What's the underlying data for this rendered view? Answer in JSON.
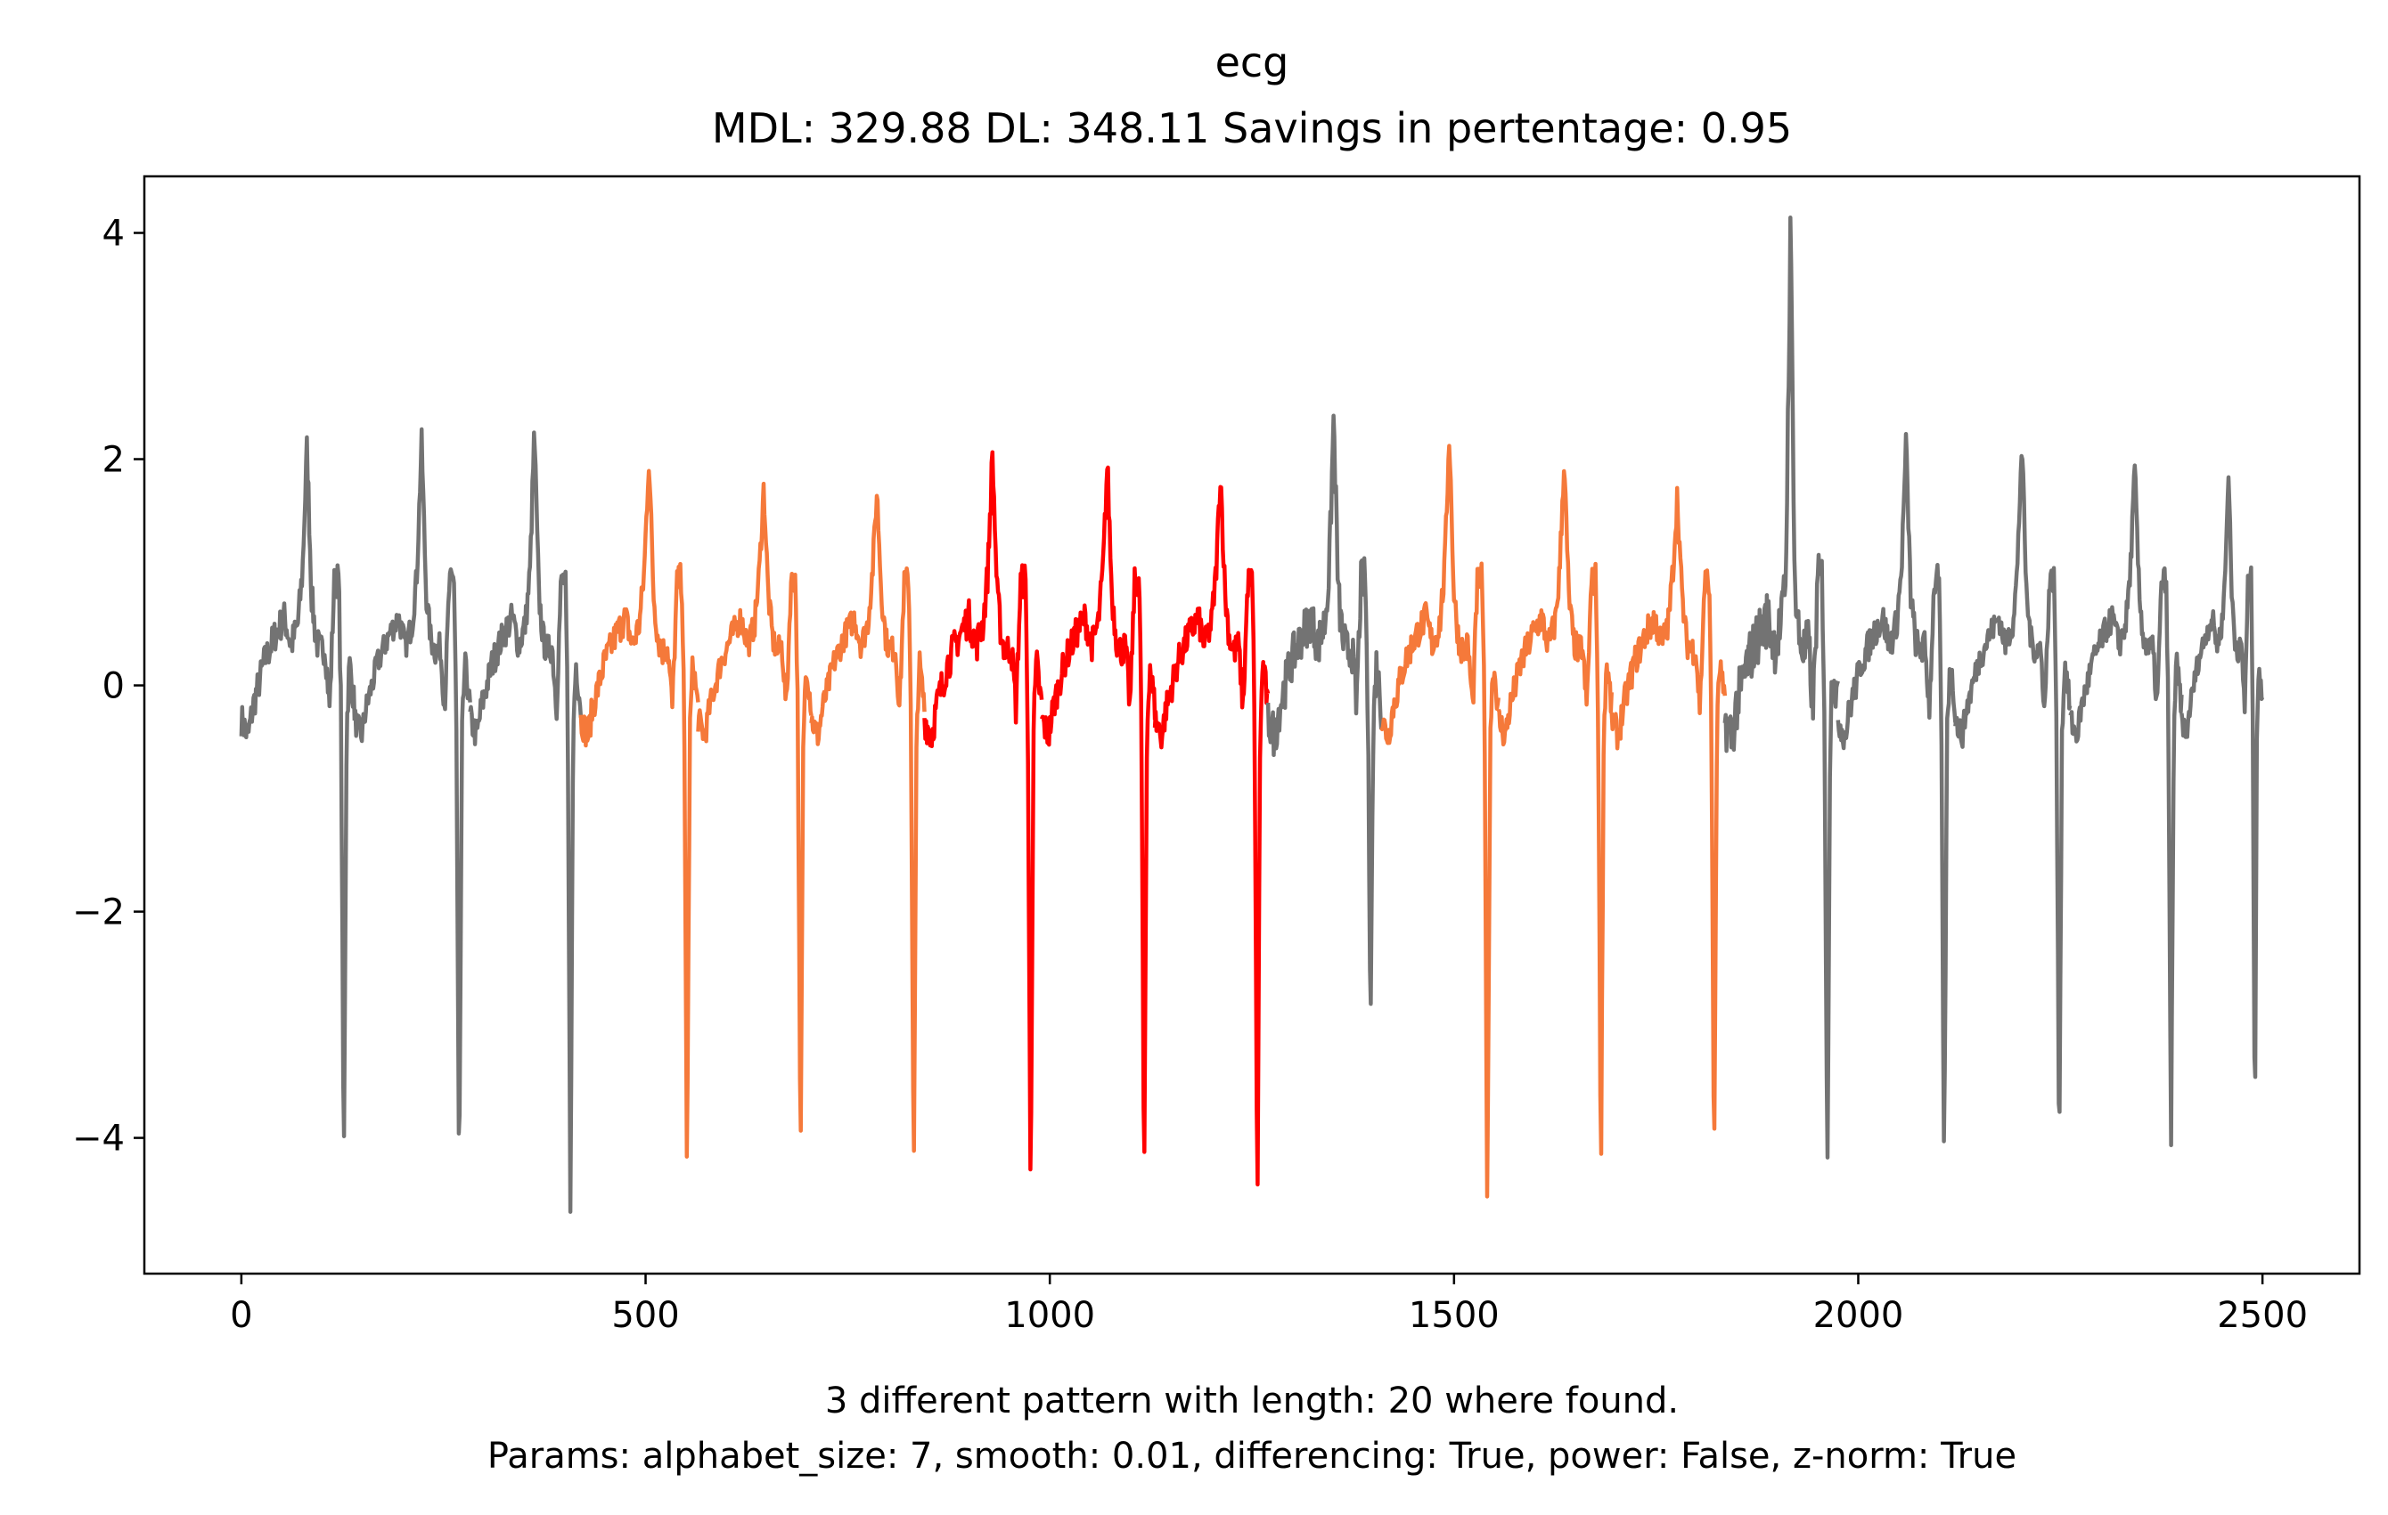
{
  "chart_data": {
    "type": "line",
    "title": "ecg",
    "subtitle": "MDL: 329.88 DL: 348.11 Savings in pertentage: 0.95",
    "xlabel_line1": "3 different pattern with length: 20 where found.",
    "xlabel_line2": "Params: alphabet_size: 7, smooth: 0.01, differencing: True, power: False, z-norm: True",
    "ylabel": "",
    "xlim": [
      -120,
      2620
    ],
    "ylim": [
      -5.2,
      4.5
    ],
    "xticks": [
      0,
      500,
      1000,
      1500,
      2000,
      2500
    ],
    "xtick_labels": [
      "0",
      "500",
      "1000",
      "1500",
      "2000",
      "2500"
    ],
    "yticks": [
      4,
      2,
      0,
      -2,
      -4
    ],
    "ytick_labels": [
      "4",
      "2",
      "0",
      "−2",
      "−4"
    ],
    "grid": false,
    "legend": "none",
    "colors": {
      "base": "#737373",
      "pattern_orange": "#f5793a",
      "pattern_red": "#ff0000"
    },
    "beats": [
      {
        "start": 0,
        "end": 140,
        "color": "base",
        "r_peak": 2.12,
        "s_min": -4.38,
        "jitter": 0.15
      },
      {
        "start": 140,
        "end": 283,
        "color": "base",
        "r_peak": 2.16,
        "s_min": -4.5,
        "jitter": 0.12
      },
      {
        "start": 283,
        "end": 420,
        "color": "base",
        "r_peak": 2.25,
        "s_min": -4.58,
        "jitter": 0.14
      },
      {
        "start": 420,
        "end": 565,
        "color": "pattern_orange",
        "r_peak": 2.02,
        "s_min": -4.35,
        "jitter": 0.14
      },
      {
        "start": 565,
        "end": 705,
        "color": "pattern_orange",
        "r_peak": 1.75,
        "s_min": -4.37,
        "jitter": 0.12
      },
      {
        "start": 705,
        "end": 845,
        "color": "pattern_orange",
        "r_peak": 1.72,
        "s_min": -4.5,
        "jitter": 0.12
      },
      {
        "start": 845,
        "end": 990,
        "color": "pattern_red",
        "r_peak": 2.04,
        "s_min": -4.6,
        "jitter": 0.16
      },
      {
        "start": 990,
        "end": 1130,
        "color": "pattern_red",
        "r_peak": 1.97,
        "s_min": -4.62,
        "jitter": 0.14
      },
      {
        "start": 1130,
        "end": 1270,
        "color": "pattern_red",
        "r_peak": 1.89,
        "s_min": -4.72,
        "jitter": 0.14
      },
      {
        "start": 1270,
        "end": 1410,
        "color": "base",
        "r_peak": 2.38,
        "s_min": -2.85,
        "jitter": 0.2
      },
      {
        "start": 1410,
        "end": 1555,
        "color": "pattern_orange",
        "r_peak": 2.24,
        "s_min": -4.72,
        "jitter": 0.14
      },
      {
        "start": 1555,
        "end": 1695,
        "color": "pattern_orange",
        "r_peak": 2.01,
        "s_min": -4.35,
        "jitter": 0.14
      },
      {
        "start": 1695,
        "end": 1835,
        "color": "pattern_orange",
        "r_peak": 1.68,
        "s_min": -4.38,
        "jitter": 0.14
      },
      {
        "start": 1835,
        "end": 1975,
        "color": "base",
        "r_peak": 4.05,
        "s_min": -4.52,
        "jitter": 0.25
      },
      {
        "start": 1975,
        "end": 2120,
        "color": "base",
        "r_peak": 2.14,
        "s_min": -4.38,
        "jitter": 0.14
      },
      {
        "start": 2120,
        "end": 2262,
        "color": "base",
        "r_peak": 2.16,
        "s_min": -4.2,
        "jitter": 0.12
      },
      {
        "start": 2262,
        "end": 2400,
        "color": "base",
        "r_peak": 1.92,
        "s_min": -4.15,
        "jitter": 0.12
      },
      {
        "start": 2400,
        "end": 2500,
        "color": "base",
        "r_peak": 1.92,
        "s_min": -4.18,
        "jitter": 0.1
      }
    ]
  }
}
